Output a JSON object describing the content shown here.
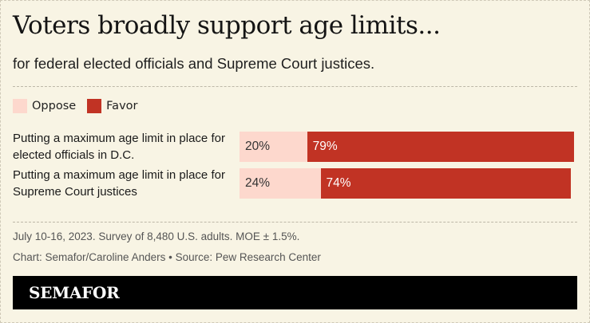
{
  "title": "Voters broadly support age limits...",
  "subtitle": "for federal elected officials and Supreme Court justices.",
  "legend": [
    {
      "name": "Oppose",
      "color": "#fdd8cd"
    },
    {
      "name": "Favor",
      "color": "#c13324"
    }
  ],
  "footer": {
    "survey_note": "July 10-16, 2023. Survey of 8,480 U.S. adults. MOE ± 1.5%.",
    "credit": "Chart: Semafor/Caroline Anders • Source: Pew Research Center",
    "brand": "SEMAFOR"
  },
  "chart_data": {
    "type": "bar",
    "orientation": "horizontal",
    "stacked": true,
    "title": "Voters broadly support age limits...",
    "subtitle": "for federal elected officials and Supreme Court justices.",
    "categories": [
      "Putting a maximum age limit in place for elected officials in D.C.",
      "Putting a maximum age limit in place for Supreme Court justices"
    ],
    "series": [
      {
        "name": "Oppose",
        "values": [
          20,
          24
        ],
        "labels": [
          "20%",
          "24%"
        ],
        "color": "#fdd8cd"
      },
      {
        "name": "Favor",
        "values": [
          79,
          74
        ],
        "labels": [
          "79%",
          "74%"
        ],
        "color": "#c13324"
      }
    ],
    "xlim": [
      0,
      100
    ],
    "legend_position": "top-left",
    "grid": false
  }
}
